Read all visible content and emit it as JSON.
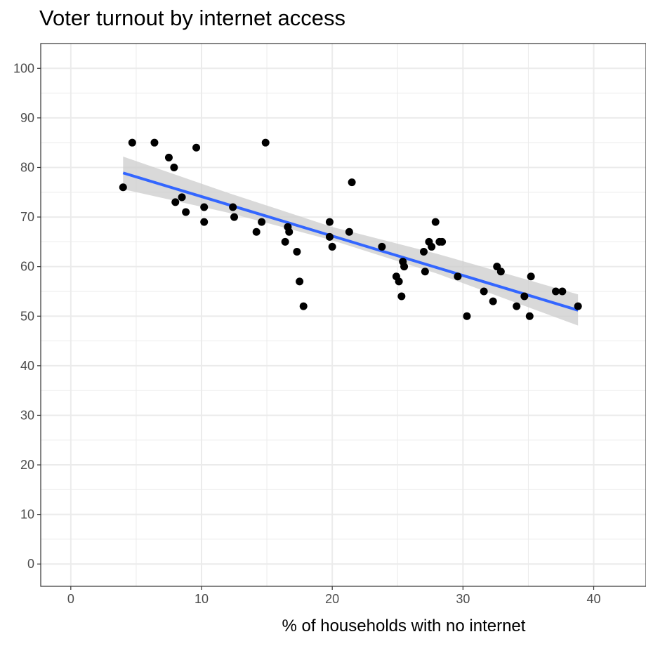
{
  "chart_data": {
    "type": "scatter",
    "title": "Voter turnout by internet access",
    "xlabel": "% of households with no internet",
    "ylabel": "",
    "xlim": [
      -2.3,
      44
    ],
    "ylim": [
      -4.5,
      105
    ],
    "x_ticks": [
      0,
      10,
      20,
      30,
      40
    ],
    "x_tick_labels": [
      "0",
      "10",
      "20",
      "30",
      "40"
    ],
    "y_ticks": [
      0,
      10,
      20,
      30,
      40,
      50,
      60,
      70,
      80,
      90,
      100
    ],
    "y_tick_labels": [
      "0",
      "10",
      "20",
      "30",
      "40",
      "50",
      "60",
      "70",
      "80",
      "90",
      "100"
    ],
    "grid": true,
    "legend": "none",
    "colors": {
      "points": "#000000",
      "fit_line": "#3366FF",
      "confidence_band": "#cccccc",
      "grid": "#ebebeb",
      "panel_border": "#333333"
    },
    "points": [
      {
        "x": 4.0,
        "y": 76
      },
      {
        "x": 4.7,
        "y": 85
      },
      {
        "x": 6.4,
        "y": 85
      },
      {
        "x": 7.5,
        "y": 82
      },
      {
        "x": 7.9,
        "y": 80
      },
      {
        "x": 8.0,
        "y": 73
      },
      {
        "x": 8.5,
        "y": 74
      },
      {
        "x": 8.8,
        "y": 71
      },
      {
        "x": 9.6,
        "y": 84
      },
      {
        "x": 10.2,
        "y": 72
      },
      {
        "x": 10.2,
        "y": 69
      },
      {
        "x": 12.4,
        "y": 72
      },
      {
        "x": 12.5,
        "y": 70
      },
      {
        "x": 14.2,
        "y": 67
      },
      {
        "x": 14.6,
        "y": 69
      },
      {
        "x": 14.9,
        "y": 85
      },
      {
        "x": 16.4,
        "y": 65
      },
      {
        "x": 16.6,
        "y": 68
      },
      {
        "x": 16.7,
        "y": 67
      },
      {
        "x": 17.3,
        "y": 63
      },
      {
        "x": 17.5,
        "y": 57
      },
      {
        "x": 17.8,
        "y": 52
      },
      {
        "x": 19.8,
        "y": 69
      },
      {
        "x": 19.8,
        "y": 66
      },
      {
        "x": 20.0,
        "y": 64
      },
      {
        "x": 21.3,
        "y": 67
      },
      {
        "x": 21.5,
        "y": 77
      },
      {
        "x": 23.8,
        "y": 64
      },
      {
        "x": 24.9,
        "y": 58
      },
      {
        "x": 25.1,
        "y": 57
      },
      {
        "x": 25.3,
        "y": 54
      },
      {
        "x": 25.4,
        "y": 61
      },
      {
        "x": 25.5,
        "y": 60
      },
      {
        "x": 27.0,
        "y": 63
      },
      {
        "x": 27.1,
        "y": 59
      },
      {
        "x": 27.4,
        "y": 65
      },
      {
        "x": 27.6,
        "y": 64
      },
      {
        "x": 27.9,
        "y": 69
      },
      {
        "x": 28.2,
        "y": 65
      },
      {
        "x": 28.4,
        "y": 65
      },
      {
        "x": 29.6,
        "y": 58
      },
      {
        "x": 30.3,
        "y": 50
      },
      {
        "x": 31.6,
        "y": 55
      },
      {
        "x": 32.3,
        "y": 53
      },
      {
        "x": 32.6,
        "y": 60
      },
      {
        "x": 32.9,
        "y": 59
      },
      {
        "x": 34.1,
        "y": 52
      },
      {
        "x": 34.7,
        "y": 54
      },
      {
        "x": 35.1,
        "y": 50
      },
      {
        "x": 35.2,
        "y": 58
      },
      {
        "x": 37.1,
        "y": 55
      },
      {
        "x": 37.6,
        "y": 55
      },
      {
        "x": 38.8,
        "y": 52
      }
    ],
    "fit": {
      "method": "linear",
      "x": [
        4.0,
        38.8
      ],
      "y": [
        78.9,
        51.2
      ]
    },
    "confidence_band": {
      "x": [
        4.0,
        12.0,
        20.0,
        28.0,
        38.8
      ],
      "lower": [
        75.6,
        70.9,
        65.3,
        58.6,
        48.1
      ],
      "upper": [
        82.2,
        74.9,
        68.0,
        62.6,
        54.4
      ]
    }
  }
}
